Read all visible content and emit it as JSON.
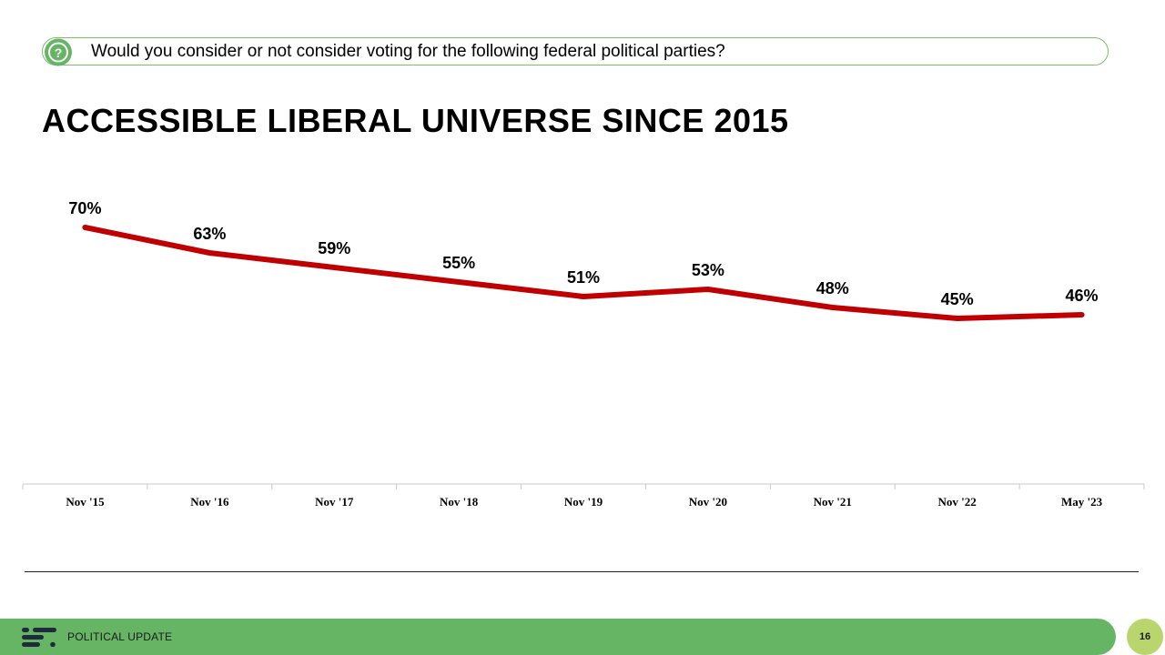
{
  "question": {
    "icon": "question-circle-icon",
    "text": "Would you consider or not consider voting for the following federal political parties?"
  },
  "title": "ACCESSIBLE LIBERAL UNIVERSE SINCE 2015",
  "colors": {
    "accent_green": "#66b565",
    "line_red": "#c00000",
    "page_badge": "#b8d56e"
  },
  "chart_data": {
    "type": "line",
    "categories": [
      "Nov '15",
      "Nov '16",
      "Nov '17",
      "Nov '18",
      "Nov '19",
      "Nov '20",
      "Nov '21",
      "Nov '22",
      "May '23"
    ],
    "series": [
      {
        "values": [
          70,
          63,
          59,
          55,
          51,
          53,
          48,
          45,
          46
        ]
      }
    ],
    "data_labels": [
      "70%",
      "63%",
      "59%",
      "55%",
      "51%",
      "53%",
      "48%",
      "45%",
      "46%"
    ],
    "title": "",
    "xlabel": "",
    "ylabel": "",
    "ylim": [
      0,
      100
    ],
    "grid": false,
    "legend": "none"
  },
  "footer": {
    "logo": "abacus-logo-icon",
    "label": "POLITICAL UPDATE",
    "page_number": "16"
  }
}
